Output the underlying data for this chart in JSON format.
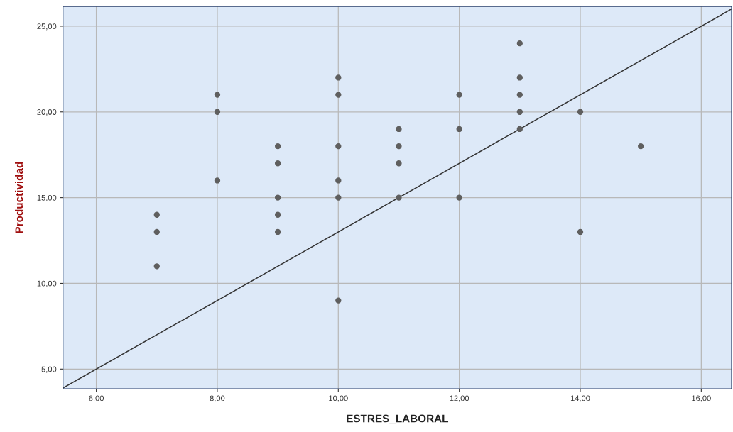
{
  "chart_data": {
    "type": "scatter",
    "xlabel": "ESTRES_LABORAL",
    "ylabel": "Productividad",
    "xlim": [
      5.45,
      16.5
    ],
    "ylim": [
      3.85,
      26.15
    ],
    "xticks": [
      {
        "value": 6,
        "label": "6,00"
      },
      {
        "value": 8,
        "label": "8,00"
      },
      {
        "value": 10,
        "label": "10,00"
      },
      {
        "value": 12,
        "label": "12,00"
      },
      {
        "value": 14,
        "label": "14,00"
      },
      {
        "value": 16,
        "label": "16,00"
      }
    ],
    "yticks": [
      {
        "value": 5,
        "label": "5,00"
      },
      {
        "value": 10,
        "label": "10,00"
      },
      {
        "value": 15,
        "label": "15,00"
      },
      {
        "value": 20,
        "label": "20,00"
      },
      {
        "value": 25,
        "label": "25,00"
      }
    ],
    "grid": true,
    "series": [
      {
        "marker": "circle",
        "color": "#5f5f5f",
        "x": [
          7,
          7,
          7,
          8,
          8,
          8,
          9,
          9,
          9,
          9,
          9,
          10,
          10,
          10,
          10,
          10,
          10,
          11,
          11,
          11,
          11,
          12,
          12,
          12,
          13,
          13,
          13,
          13,
          13,
          14,
          14,
          15
        ],
        "values": [
          14,
          13,
          11,
          21,
          20,
          16,
          18,
          17,
          15,
          14,
          13,
          22,
          21,
          18,
          16,
          15,
          9,
          19,
          18,
          17,
          15,
          21,
          19,
          15,
          24,
          22,
          21,
          20,
          19,
          20,
          13,
          18
        ]
      },
      {
        "type": "line",
        "color": "#333333",
        "x": [
          5.45,
          16.5
        ],
        "values": [
          3.9,
          26
        ]
      }
    ]
  }
}
